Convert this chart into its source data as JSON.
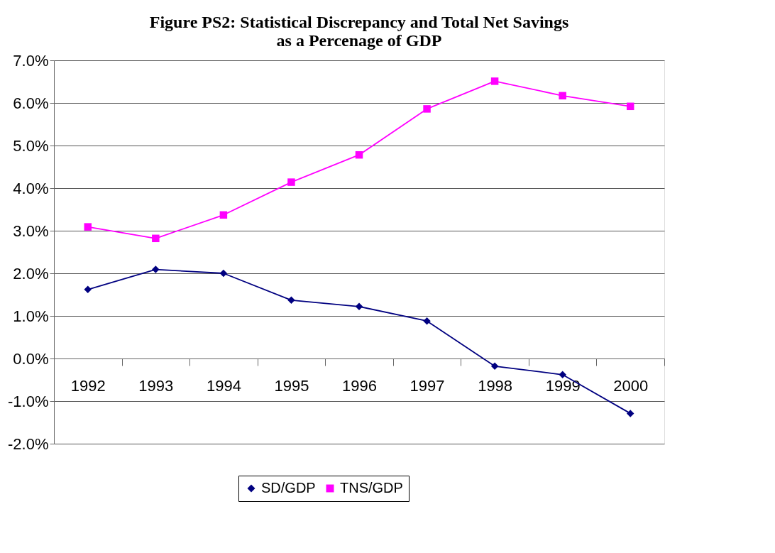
{
  "chart_data": {
    "type": "line",
    "title": [
      "Figure PS2: Statistical Discrepancy and Total Net Savings",
      "as a Percenage of GDP"
    ],
    "categories": [
      "1992",
      "1993",
      "1994",
      "1995",
      "1996",
      "1997",
      "1998",
      "1999",
      "2000"
    ],
    "series": [
      {
        "name": "SD/GDP",
        "color": "#000080",
        "marker": "diamond",
        "values": [
          1.62,
          2.09,
          2.0,
          1.37,
          1.22,
          0.88,
          -0.18,
          -0.38,
          -1.29
        ]
      },
      {
        "name": "TNS/GDP",
        "color": "#ff00ff",
        "marker": "square",
        "values": [
          3.09,
          2.82,
          3.37,
          4.14,
          4.78,
          5.86,
          6.51,
          6.17,
          5.92
        ]
      }
    ],
    "ylim": [
      -2,
      7
    ],
    "yticks": [
      {
        "value": -2,
        "label": "-2.0%"
      },
      {
        "value": -1,
        "label": "-1.0%"
      },
      {
        "value": 0,
        "label": "0.0%"
      },
      {
        "value": 1,
        "label": "1.0%"
      },
      {
        "value": 2,
        "label": "2.0%"
      },
      {
        "value": 3,
        "label": "3.0%"
      },
      {
        "value": 4,
        "label": "4.0%"
      },
      {
        "value": 5,
        "label": "5.0%"
      },
      {
        "value": 6,
        "label": "6.0%"
      },
      {
        "value": 7,
        "label": "7.0%"
      }
    ],
    "grid": "y",
    "legend": "bottom",
    "line_style": "solid"
  }
}
